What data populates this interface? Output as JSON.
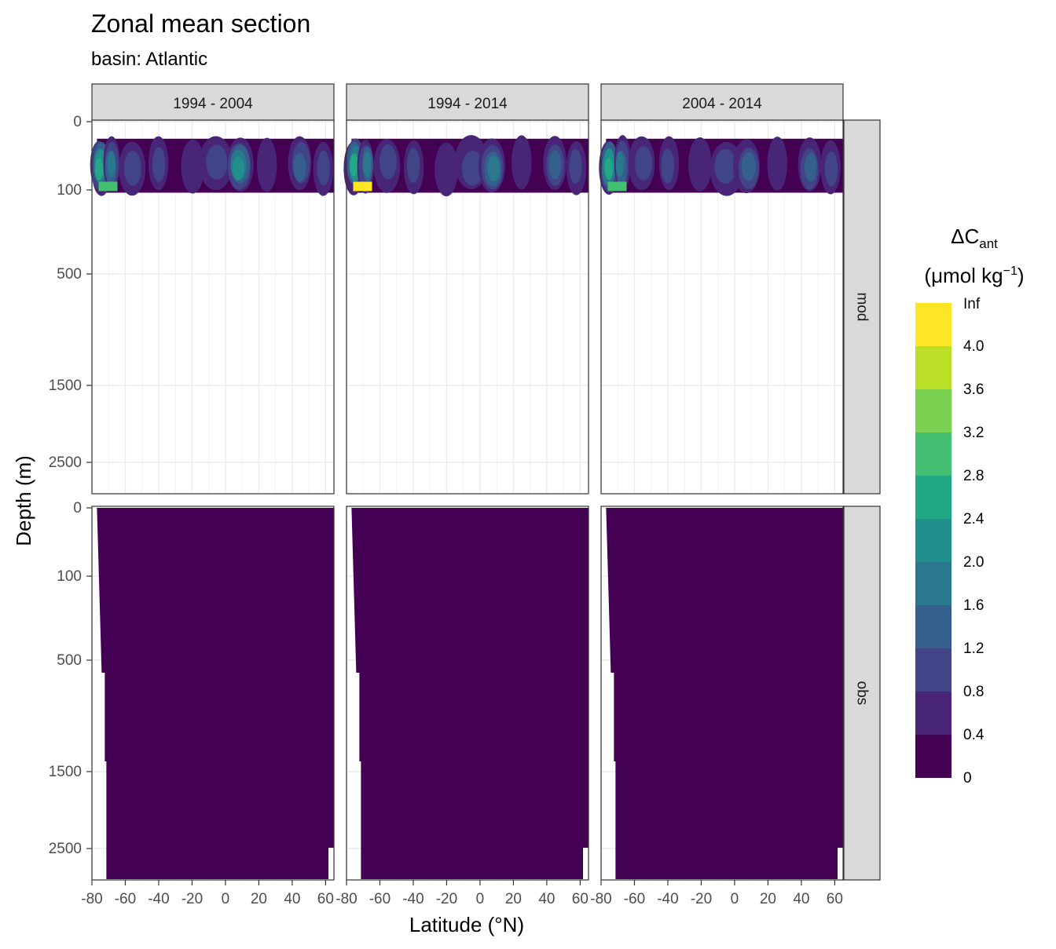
{
  "chart_data": {
    "type": "heatmap",
    "title": "Zonal mean section",
    "subtitle": "basin: Atlantic",
    "xlabel": "Latitude (°N)",
    "ylabel": "Depth (m)",
    "x_ticks": [
      "-80",
      "-60",
      "-40",
      "-20",
      "0",
      "20",
      "40",
      "60"
    ],
    "x_tick_values": [
      -80,
      -60,
      -40,
      -20,
      0,
      20,
      40,
      60
    ],
    "xlim": [
      -80,
      65
    ],
    "y_ticks": [
      "0",
      "100",
      "500",
      "1500",
      "2500"
    ],
    "y_tick_values": [
      0,
      100,
      500,
      1500,
      2500
    ],
    "y_scale": "reversed, compressed with depth",
    "facet_columns": [
      "1994 - 2004",
      "1994 - 2014",
      "2004 - 2014"
    ],
    "facet_rows": [
      "mod",
      "obs"
    ],
    "grid": true,
    "legend": {
      "title_main": "ΔC",
      "title_sub": "ant",
      "unit_main": "(μmol kg",
      "unit_sup": "−1",
      "unit_close": ")",
      "placement": "right",
      "bins": [
        {
          "label": "0",
          "color": "#440154"
        },
        {
          "label": "0.4",
          "color": "#482576"
        },
        {
          "label": "0.8",
          "color": "#414487"
        },
        {
          "label": "1.2",
          "color": "#35608D"
        },
        {
          "label": "1.6",
          "color": "#2A788E"
        },
        {
          "label": "2.0",
          "color": "#21908C"
        },
        {
          "label": "2.4",
          "color": "#22A884"
        },
        {
          "label": "2.8",
          "color": "#43BF71"
        },
        {
          "label": "3.2",
          "color": "#7AD151"
        },
        {
          "label": "3.6",
          "color": "#BBDF27"
        },
        {
          "label": "4.0",
          "color": "#FDE725"
        },
        {
          "label": "Inf",
          "color": ""
        }
      ]
    },
    "panels": {
      "mod": {
        "depth_range_m": [
          25,
          113
        ],
        "lat_range": [
          -77,
          64
        ],
        "dominant_bin": "0",
        "max_bin": "4.0"
      },
      "obs": {
        "depth_range_m": [
          0,
          2850
        ],
        "lat_range": [
          -77,
          64
        ],
        "dominant_bin": "0",
        "max_bin": "0.4"
      }
    }
  }
}
